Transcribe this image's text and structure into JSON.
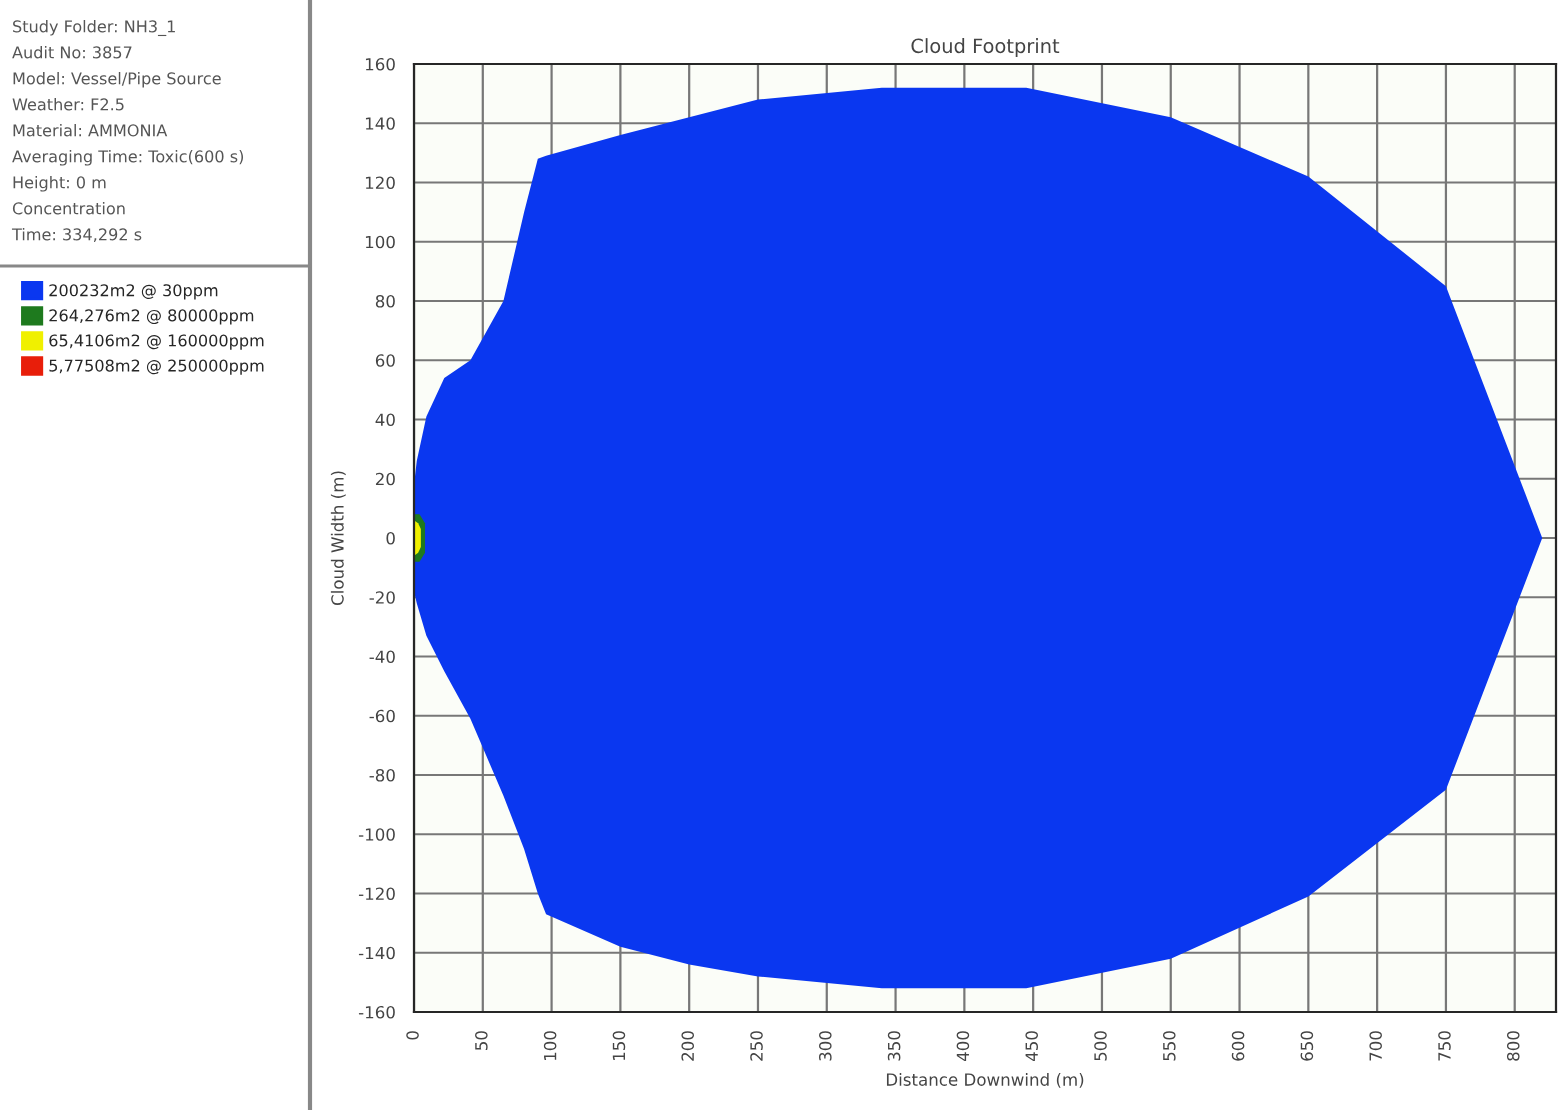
{
  "chart_data": {
    "type": "area",
    "title": "Cloud Footprint",
    "xlabel": "Distance Downwind (m)",
    "ylabel": "Cloud Width (m)",
    "annotations": [
      "Study Folder: NH3_1",
      "Audit No: 3857",
      "Model: Vessel/Pipe Source",
      "Weather: F2.5",
      "Material: AMMONIA",
      "Averaging Time: Toxic(600 s)",
      "Height: 0 m",
      "Concentration",
      "Time: 334,292 s"
    ],
    "series": [
      {
        "name": "200232m2 @ 30ppm",
        "color": "#0a37f0",
        "x": [
          0,
          2,
          9,
          22,
          41,
          65,
          80,
          90,
          96,
          150,
          200,
          250,
          340,
          445,
          550,
          650,
          750,
          820
        ],
        "values": [
          18,
          26,
          41,
          54,
          60,
          80,
          110,
          128,
          129,
          136,
          142,
          148,
          152,
          152,
          142,
          122,
          85,
          0
        ]
      },
      {
        "color": "#0a37f0",
        "x": [
          0,
          2,
          9,
          22,
          41,
          65,
          80,
          90,
          96,
          150,
          200,
          250,
          340,
          445,
          550,
          650,
          750,
          820
        ],
        "values": [
          -18,
          -22,
          -33,
          -45,
          -61,
          -87,
          -105,
          -120,
          -127,
          -138,
          -144,
          -148,
          -152,
          -152,
          -142,
          -121,
          -85,
          0
        ]
      },
      {
        "name": "264,276m2 @ 80000ppm",
        "color": "#1e7a1e",
        "x": [
          0,
          4,
          8
        ],
        "values": [
          8,
          8,
          5
        ]
      },
      {
        "color": "#1e7a1e",
        "x": [
          0,
          4,
          8
        ],
        "values": [
          -8,
          -8,
          -5
        ]
      },
      {
        "name": "65,4106m2 @ 160000ppm",
        "color": "#f0f000",
        "x": [
          0,
          3,
          5
        ],
        "values": [
          6,
          5,
          3
        ]
      },
      {
        "color": "#f0f000",
        "x": [
          0,
          3,
          5
        ],
        "values": [
          -6,
          -5,
          -3
        ]
      },
      {
        "name": "5,77508m2 @ 250000ppm",
        "color": "#e81e0a",
        "values": [
          null
        ]
      }
    ],
    "xlim": [
      0,
      830
    ],
    "xticks": [
      0,
      50,
      100,
      150,
      200,
      250,
      300,
      350,
      400,
      450,
      500,
      550,
      600,
      650,
      700,
      750,
      800
    ],
    "ylim": [
      -160,
      160
    ],
    "yticks": [
      -160,
      -140,
      -120,
      -100,
      -80,
      -60,
      -40,
      -20,
      0,
      20,
      40,
      60,
      80,
      100,
      120,
      140,
      160
    ],
    "grid": true,
    "legend": "left"
  }
}
